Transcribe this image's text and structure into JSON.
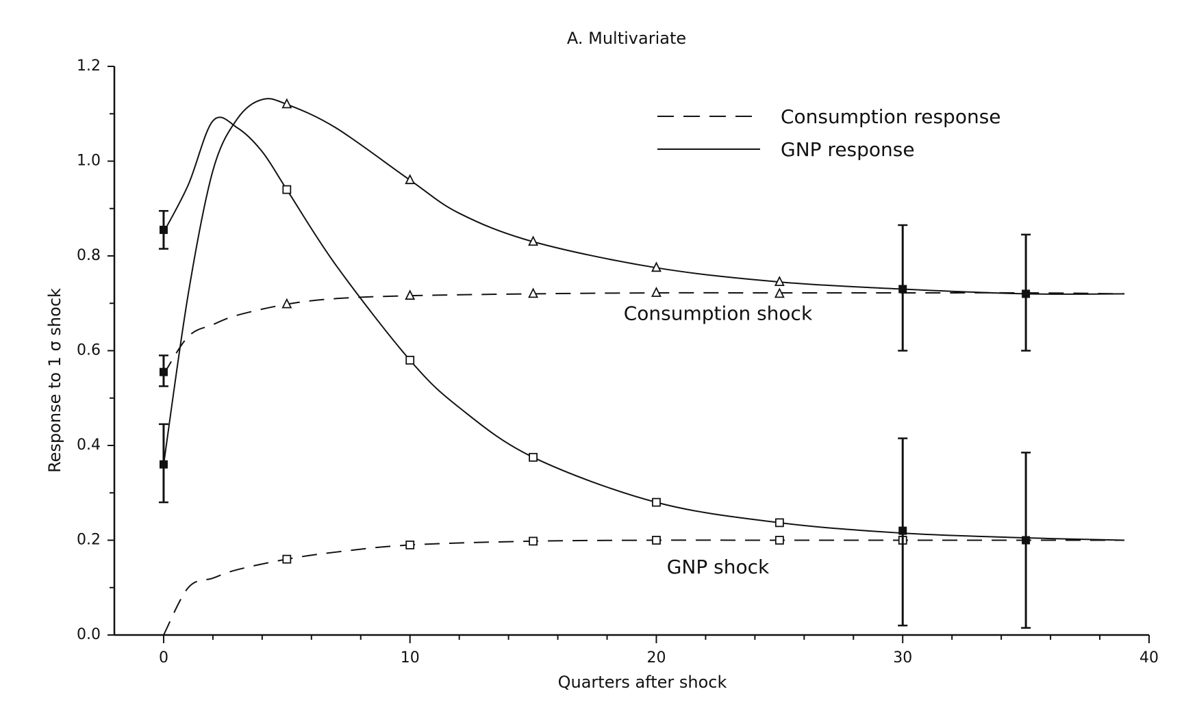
{
  "chart_data": {
    "type": "line",
    "title": "A. Multivariate",
    "xlabel": "Quarters after shock",
    "ylabel": "Response to 1 σ shock",
    "xlim": [
      -2,
      40
    ],
    "ylim": [
      0,
      1.2
    ],
    "xticks": [
      0,
      10,
      20,
      30,
      40
    ],
    "yticks": [
      0.0,
      0.2,
      0.4,
      0.6,
      0.8,
      1.0,
      1.2
    ],
    "ytick_labels": [
      "0.0",
      "0.2",
      "0.4",
      "0.6",
      "0.8",
      "1.0",
      "1.2"
    ],
    "grid": false,
    "legend_position": "top-right",
    "legend": [
      {
        "label": "Consumption response",
        "style": "dashed"
      },
      {
        "label": "GNP response",
        "style": "solid"
      }
    ],
    "annotations": [
      {
        "text": "Consumption shock",
        "x": 20,
        "y": 0.665
      },
      {
        "text": "GNP shock",
        "x": 20,
        "y": 0.13
      }
    ],
    "series": [
      {
        "style": "solid",
        "marker": "triangle",
        "x": [
          0,
          1,
          2,
          3,
          4,
          5,
          7,
          10,
          12,
          15,
          20,
          25,
          30,
          35,
          39
        ],
        "y": [
          0.36,
          0.72,
          0.98,
          1.09,
          1.13,
          1.12,
          1.07,
          0.96,
          0.89,
          0.83,
          0.775,
          0.745,
          0.73,
          0.72,
          0.72
        ],
        "markers_x": [
          5,
          10,
          15,
          20,
          25
        ],
        "markers_y": [
          1.12,
          0.96,
          0.83,
          0.775,
          0.745
        ]
      },
      {
        "style": "dashed",
        "marker": "triangle",
        "x": [
          0,
          1,
          2,
          3,
          5,
          7,
          10,
          15,
          20,
          25,
          30,
          35,
          39
        ],
        "y": [
          0.55,
          0.63,
          0.655,
          0.675,
          0.698,
          0.71,
          0.716,
          0.72,
          0.722,
          0.722,
          0.722,
          0.722,
          0.72
        ],
        "markers_x": [
          5,
          10,
          15,
          20,
          25
        ],
        "markers_y": [
          0.698,
          0.716,
          0.72,
          0.722,
          0.72
        ]
      },
      {
        "style": "solid",
        "marker": "square",
        "x": [
          0,
          1,
          2,
          3,
          4,
          5,
          7,
          10,
          12,
          15,
          20,
          25,
          30,
          35,
          39
        ],
        "y": [
          0.85,
          0.95,
          1.085,
          1.07,
          1.02,
          0.94,
          0.78,
          0.58,
          0.48,
          0.375,
          0.28,
          0.237,
          0.215,
          0.205,
          0.2
        ],
        "markers_x": [
          5,
          10,
          15,
          20,
          25
        ],
        "markers_y": [
          0.94,
          0.58,
          0.375,
          0.28,
          0.237
        ]
      },
      {
        "style": "dashed",
        "marker": "square",
        "x": [
          0,
          1,
          2,
          3,
          5,
          7,
          10,
          15,
          20,
          25,
          30,
          35,
          39
        ],
        "y": [
          0.0,
          0.1,
          0.12,
          0.138,
          0.16,
          0.175,
          0.19,
          0.198,
          0.2,
          0.2,
          0.2,
          0.2,
          0.2
        ],
        "markers_x": [
          5,
          10,
          15,
          20,
          25,
          30
        ],
        "markers_y": [
          0.16,
          0.19,
          0.198,
          0.2,
          0.2,
          0.2
        ]
      }
    ],
    "error_bars": [
      {
        "x": 0,
        "y": 0.855,
        "low": 0.815,
        "high": 0.895
      },
      {
        "x": 0,
        "y": 0.555,
        "low": 0.525,
        "high": 0.59
      },
      {
        "x": 0,
        "y": 0.36,
        "low": 0.28,
        "high": 0.445
      },
      {
        "x": 30,
        "y": 0.73,
        "low": 0.6,
        "high": 0.865
      },
      {
        "x": 30,
        "y": 0.22,
        "low": 0.02,
        "high": 0.415
      },
      {
        "x": 35,
        "y": 0.72,
        "low": 0.6,
        "high": 0.845
      },
      {
        "x": 35,
        "y": 0.2,
        "low": 0.015,
        "high": 0.385
      }
    ]
  }
}
